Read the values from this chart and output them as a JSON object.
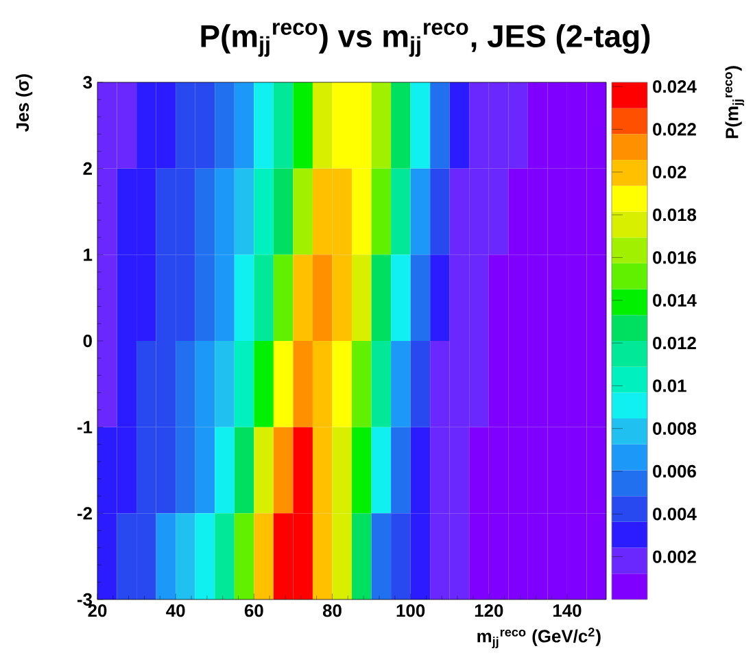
{
  "chart_data": {
    "type": "heatmap",
    "title": "P(m$_{jj}$$^{reco}$) vs m$_{jj}$$^{reco}$, JES (2-tag)",
    "xlabel": "m$_{jj}$$^{reco}$ (GeV/c$^{2}$)",
    "ylabel": "Jes (σ)",
    "clabel": "P(m$_{jj}$$^{reco}$)",
    "xlim": [
      20,
      150
    ],
    "xticks": [
      20,
      40,
      60,
      80,
      100,
      120,
      140
    ],
    "ylim": [
      -3,
      3
    ],
    "yticks": [
      -3,
      -2,
      -1,
      0,
      1,
      2,
      3
    ],
    "clim": [
      0,
      0.0242
    ],
    "cticks": [
      0.002,
      0.004,
      0.006,
      0.008,
      0.01,
      0.012,
      0.014,
      0.016,
      0.018,
      0.02,
      0.022,
      0.024
    ],
    "cells": [
      [
        0.0018,
        0.0022,
        0.003,
        0.0035,
        0.004,
        0.0046,
        0.0055,
        0.0068,
        0.0085,
        0.011,
        0.014,
        0.017,
        0.0188,
        0.0188,
        0.0165,
        0.013,
        0.009,
        0.005,
        0.003,
        0.0018,
        0.0015,
        0.0013,
        0.0008,
        0.0008,
        0.0008,
        0.0008
      ],
      [
        0.002,
        0.0026,
        0.0033,
        0.0038,
        0.0043,
        0.005,
        0.0062,
        0.0078,
        0.01,
        0.013,
        0.0165,
        0.02,
        0.0205,
        0.0185,
        0.015,
        0.011,
        0.007,
        0.0038,
        0.0022,
        0.0016,
        0.0013,
        0.001,
        0.0008,
        0.0008,
        0.0008,
        0.0008
      ],
      [
        0.0022,
        0.0028,
        0.0035,
        0.004,
        0.0046,
        0.0055,
        0.007,
        0.009,
        0.0115,
        0.015,
        0.0195,
        0.021,
        0.02,
        0.017,
        0.013,
        0.009,
        0.0055,
        0.003,
        0.0019,
        0.0015,
        0.0012,
        0.0009,
        0.0008,
        0.0008,
        0.0008,
        0.0008
      ],
      [
        0.0024,
        0.003,
        0.0037,
        0.0043,
        0.005,
        0.0062,
        0.008,
        0.0105,
        0.014,
        0.0185,
        0.0215,
        0.0205,
        0.0185,
        0.015,
        0.011,
        0.007,
        0.004,
        0.0024,
        0.0017,
        0.0013,
        0.001,
        0.0008,
        0.0008,
        0.0008,
        0.0008,
        0.0008
      ],
      [
        0.0026,
        0.0033,
        0.004,
        0.0047,
        0.0056,
        0.007,
        0.0092,
        0.0125,
        0.017,
        0.0215,
        0.0232,
        0.0205,
        0.0175,
        0.0135,
        0.009,
        0.0055,
        0.0032,
        0.002,
        0.0015,
        0.0012,
        0.0009,
        0.0008,
        0.0008,
        0.0008,
        0.0008,
        0.0008
      ],
      [
        0.003,
        0.0038,
        0.0048,
        0.0062,
        0.0075,
        0.009,
        0.0115,
        0.015,
        0.02,
        0.0235,
        0.0232,
        0.02,
        0.017,
        0.013,
        0.006,
        0.0045,
        0.003,
        0.0022,
        0.0016,
        0.001,
        0.0008,
        0.0008,
        0.0008,
        0.0008,
        0.0008,
        0.0008
      ]
    ]
  }
}
